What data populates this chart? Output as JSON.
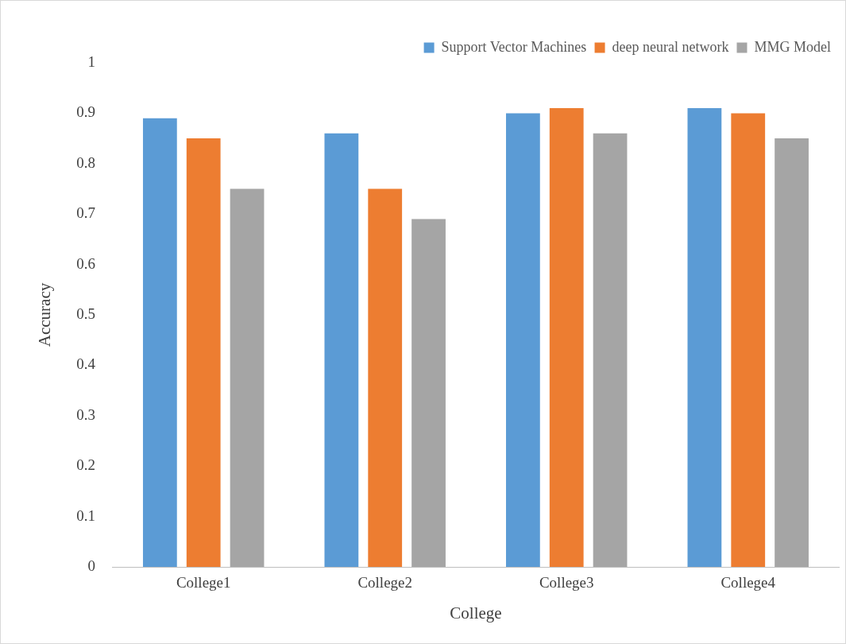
{
  "chart_data": {
    "type": "bar",
    "xlabel": "College",
    "ylabel": "Accuracy",
    "categories": [
      "College1",
      "College2",
      "College3",
      "College4"
    ],
    "series": [
      {
        "name": "Support Vector Machines",
        "color": "#5b9bd5",
        "values": [
          0.89,
          0.86,
          0.9,
          0.91
        ]
      },
      {
        "name": "deep neural network",
        "color": "#ed7d31",
        "values": [
          0.85,
          0.75,
          0.91,
          0.9
        ]
      },
      {
        "name": "MMG Model",
        "color": "#a5a5a5",
        "values": [
          0.75,
          0.69,
          0.86,
          0.85
        ]
      }
    ],
    "ylim": [
      0,
      1
    ],
    "yticks": [
      0,
      0.1,
      0.2,
      0.3,
      0.4,
      0.5,
      0.6,
      0.7,
      0.8,
      0.9,
      1
    ],
    "grid": false,
    "legend": "top right"
  }
}
